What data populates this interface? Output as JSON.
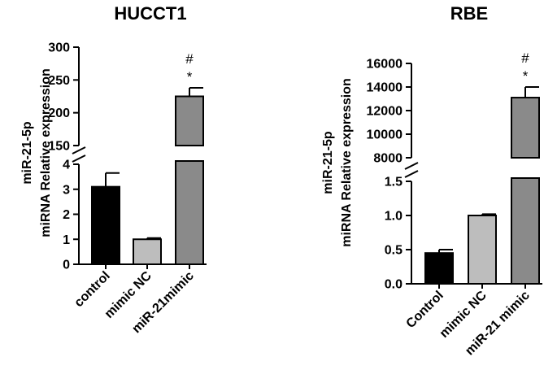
{
  "chart_data": [
    {
      "type": "bar",
      "title": "HUCCT1",
      "ylabel_lines": [
        "miR-21-5p",
        "miRNA Relative expression"
      ],
      "categories": [
        "control",
        "mimic NC",
        "miR-21mimic"
      ],
      "values": [
        3.1,
        1.0,
        225
      ],
      "errors": [
        0.55,
        0.05,
        13
      ],
      "colors": [
        "#000000",
        "#bdbdbd",
        "#8a8a8a"
      ],
      "axis_break": true,
      "lower_segment": {
        "ylim": [
          0,
          4
        ],
        "ticks": [
          "0",
          "1",
          "2",
          "3",
          "4"
        ]
      },
      "upper_segment": {
        "ylim": [
          150,
          300
        ],
        "ticks": [
          "150",
          "200",
          "250",
          "300"
        ]
      },
      "annotations": [
        {
          "category": "miR-21mimic",
          "labels": [
            "#",
            "*"
          ]
        }
      ]
    },
    {
      "type": "bar",
      "title": "RBE",
      "ylabel_lines": [
        "miR-21-5p",
        "miRNA Relative expression"
      ],
      "categories": [
        "Control",
        "mimic NC",
        "miR-21 mimic"
      ],
      "values": [
        0.45,
        1.0,
        13100
      ],
      "errors": [
        0.05,
        0.02,
        900
      ],
      "colors": [
        "#000000",
        "#bdbdbd",
        "#8a8a8a"
      ],
      "axis_break": true,
      "lower_segment": {
        "ylim": [
          0,
          1.5
        ],
        "ticks": [
          "0.0",
          "0.5",
          "1.0",
          "1.5"
        ]
      },
      "upper_segment": {
        "ylim": [
          8000,
          16000
        ],
        "ticks": [
          "8000",
          "10000",
          "12000",
          "14000",
          "16000"
        ]
      },
      "annotations": [
        {
          "category": "miR-21 mimic",
          "labels": [
            "#",
            "*"
          ]
        }
      ]
    }
  ]
}
